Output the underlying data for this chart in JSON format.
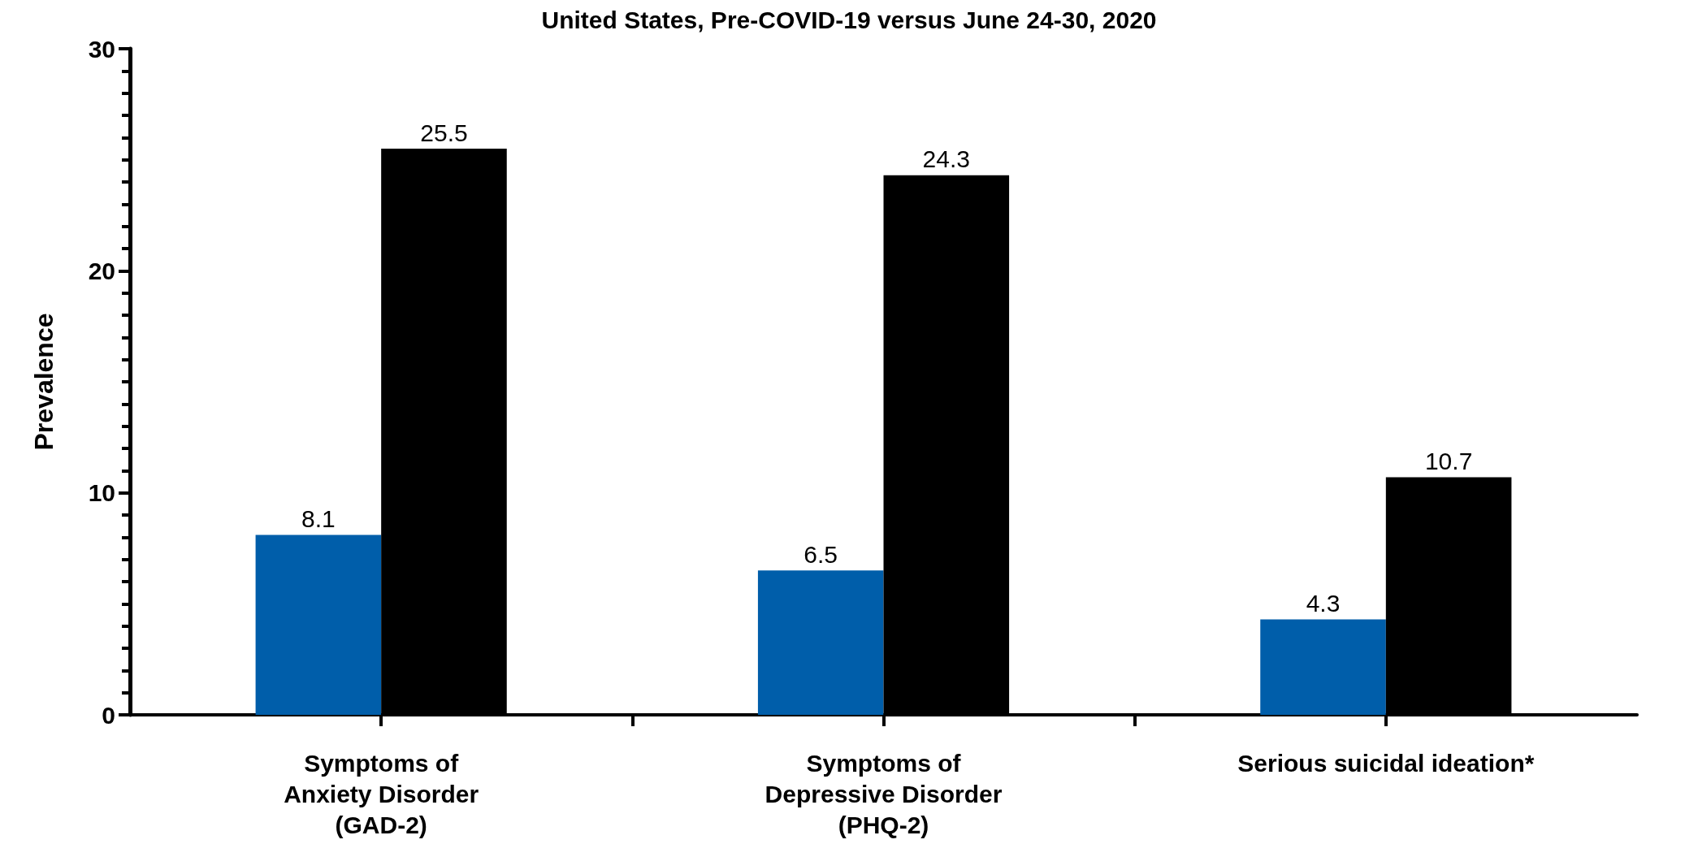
{
  "chart_data": {
    "type": "bar",
    "title": "United States, Pre-COVID-19 versus June 24-30, 2020",
    "ylabel": "Prevalence",
    "categories": [
      "Symptoms of\nAnxiety Disorder\n(GAD-2)",
      "Symptoms of\nDepressive Disorder\n(PHQ-2)",
      "Serious suicidal ideation*"
    ],
    "series": [
      {
        "color": "#005eaa",
        "values": [
          8.1,
          6.5,
          4.3
        ]
      },
      {
        "color": "#000000",
        "values": [
          25.5,
          24.3,
          10.7
        ]
      }
    ],
    "ylim": [
      0,
      30
    ],
    "yticks": [
      0,
      10,
      20,
      30
    ],
    "data_labels": true,
    "grid": false
  }
}
